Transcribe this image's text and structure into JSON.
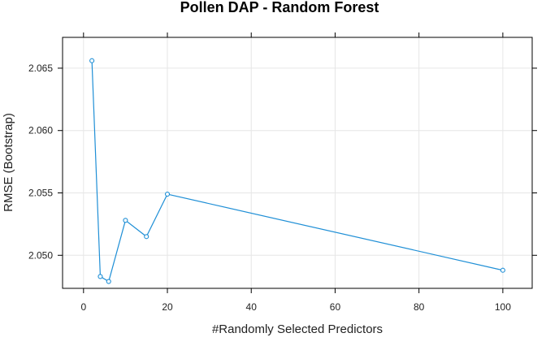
{
  "chart_data": {
    "type": "line",
    "title": "Pollen DAP - Random Forest",
    "xlabel": "#Randomly Selected Predictors",
    "ylabel": "RMSE (Bootstrap)",
    "xlim": [
      -5,
      107
    ],
    "ylim": [
      2.04735,
      2.06747
    ],
    "x_ticks": [
      0,
      20,
      40,
      60,
      80,
      100
    ],
    "y_ticks": [
      2.05,
      2.055,
      2.06,
      2.065
    ],
    "grid": true,
    "series": [
      {
        "color": "#1f8fd6",
        "marker": "open-circle",
        "x": [
          2,
          4,
          6,
          10,
          15,
          20,
          100
        ],
        "y": [
          2.0656,
          2.0483,
          2.0479,
          2.0528,
          2.0515,
          2.0549,
          2.0488
        ]
      }
    ]
  }
}
